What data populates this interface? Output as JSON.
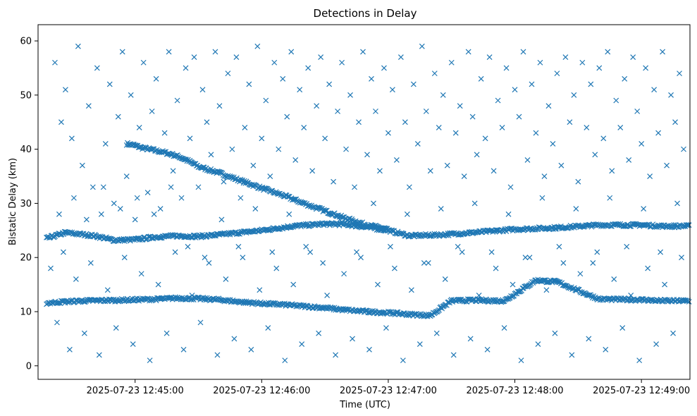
{
  "chart_data": {
    "type": "scatter",
    "title": "Detections in Delay",
    "xlabel": "Time (UTC)",
    "ylabel": "Bistatic Delay (km)",
    "marker": "x",
    "color": "#1f77b4",
    "xlim_seconds": [
      -46,
      263
    ],
    "ylim": [
      -2.5,
      63
    ],
    "x_reference": "2025-07-23 12:45:00",
    "x_ticks": [
      {
        "value": 0,
        "label": "2025-07-23 12:45:00"
      },
      {
        "value": 60,
        "label": "2025-07-23 12:46:00"
      },
      {
        "value": 120,
        "label": "2025-07-23 12:47:00"
      },
      {
        "value": 180,
        "label": "2025-07-23 12:48:00"
      },
      {
        "value": 240,
        "label": "2025-07-23 12:49:00"
      }
    ],
    "y_ticks": [
      0,
      10,
      20,
      30,
      40,
      50,
      60
    ],
    "tracks": [
      {
        "name": "upper",
        "points": [
          [
            -4,
            41.0
          ],
          [
            -1,
            40.8
          ],
          [
            3,
            40.3
          ],
          [
            8,
            39.9
          ],
          [
            15,
            39.3
          ],
          [
            21,
            38.6
          ],
          [
            26,
            37.7
          ],
          [
            30,
            36.8
          ],
          [
            40,
            35.6
          ],
          [
            50,
            34.2
          ],
          [
            60,
            32.8
          ],
          [
            70,
            31.5
          ],
          [
            80,
            30.0
          ],
          [
            90,
            28.6
          ],
          [
            100,
            27.2
          ],
          [
            110,
            26.0
          ],
          [
            120,
            25.2
          ]
        ]
      },
      {
        "name": "middle",
        "points": [
          [
            -42,
            23.5
          ],
          [
            -33,
            24.6
          ],
          [
            -19,
            24.0
          ],
          [
            -10,
            23.2
          ],
          [
            0,
            23.3
          ],
          [
            10,
            23.8
          ],
          [
            20,
            24.0
          ],
          [
            30,
            23.9
          ],
          [
            40,
            24.2
          ],
          [
            60,
            25.0
          ],
          [
            75,
            25.8
          ],
          [
            90,
            26.2
          ],
          [
            100,
            26.1
          ],
          [
            110,
            25.6
          ],
          [
            120,
            25.0
          ],
          [
            130,
            24.0
          ],
          [
            145,
            24.2
          ],
          [
            160,
            24.6
          ],
          [
            180,
            25.2
          ],
          [
            200,
            25.5
          ],
          [
            220,
            26.0
          ],
          [
            240,
            26.0
          ],
          [
            250,
            25.8
          ],
          [
            263,
            25.8
          ]
        ]
      },
      {
        "name": "lower",
        "points": [
          [
            -42,
            11.6
          ],
          [
            -35,
            11.8
          ],
          [
            -25,
            12.0
          ],
          [
            -10,
            12.1
          ],
          [
            0,
            12.2
          ],
          [
            10,
            12.3
          ],
          [
            20,
            12.5
          ],
          [
            30,
            12.4
          ],
          [
            40,
            12.2
          ],
          [
            50,
            11.8
          ],
          [
            60,
            11.5
          ],
          [
            70,
            11.3
          ],
          [
            80,
            11.0
          ],
          [
            90,
            10.7
          ],
          [
            100,
            10.3
          ],
          [
            110,
            10.0
          ],
          [
            120,
            9.8
          ],
          [
            130,
            9.5
          ],
          [
            140,
            9.3
          ],
          [
            150,
            12.0
          ],
          [
            160,
            12.1
          ],
          [
            175,
            12.0
          ],
          [
            190,
            15.8
          ],
          [
            200,
            15.5
          ],
          [
            220,
            12.3
          ],
          [
            240,
            12.2
          ],
          [
            250,
            12.0
          ],
          [
            263,
            12.0
          ]
        ]
      }
    ],
    "track_density_per_second": 2.2,
    "noise_points": [
      [
        -38,
        56
      ],
      [
        -35,
        45
      ],
      [
        -33,
        51
      ],
      [
        -30,
        42
      ],
      [
        -27,
        59
      ],
      [
        -25,
        37
      ],
      [
        -22,
        48
      ],
      [
        -20,
        33
      ],
      [
        -18,
        55
      ],
      [
        -16,
        28
      ],
      [
        -14,
        41
      ],
      [
        -12,
        52
      ],
      [
        -10,
        30
      ],
      [
        -8,
        46
      ],
      [
        -6,
        58
      ],
      [
        -4,
        35
      ],
      [
        -2,
        50
      ],
      [
        0,
        27
      ],
      [
        2,
        44
      ],
      [
        4,
        56
      ],
      [
        6,
        32
      ],
      [
        8,
        47
      ],
      [
        10,
        53
      ],
      [
        12,
        29
      ],
      [
        14,
        43
      ],
      [
        16,
        58
      ],
      [
        18,
        36
      ],
      [
        20,
        49
      ],
      [
        22,
        31
      ],
      [
        24,
        55
      ],
      [
        26,
        42
      ],
      [
        28,
        57
      ],
      [
        30,
        33
      ],
      [
        32,
        51
      ],
      [
        34,
        45
      ],
      [
        36,
        39
      ],
      [
        38,
        58
      ],
      [
        40,
        48
      ],
      [
        42,
        34
      ],
      [
        44,
        54
      ],
      [
        46,
        40
      ],
      [
        48,
        57
      ],
      [
        50,
        31
      ],
      [
        52,
        44
      ],
      [
        54,
        52
      ],
      [
        56,
        37
      ],
      [
        58,
        59
      ],
      [
        60,
        42
      ],
      [
        62,
        49
      ],
      [
        64,
        35
      ],
      [
        66,
        56
      ],
      [
        68,
        40
      ],
      [
        70,
        53
      ],
      [
        72,
        46
      ],
      [
        74,
        58
      ],
      [
        76,
        38
      ],
      [
        78,
        51
      ],
      [
        80,
        44
      ],
      [
        82,
        55
      ],
      [
        84,
        36
      ],
      [
        86,
        48
      ],
      [
        88,
        57
      ],
      [
        90,
        42
      ],
      [
        92,
        52
      ],
      [
        94,
        34
      ],
      [
        96,
        47
      ],
      [
        98,
        56
      ],
      [
        100,
        40
      ],
      [
        102,
        50
      ],
      [
        104,
        33
      ],
      [
        106,
        45
      ],
      [
        108,
        58
      ],
      [
        110,
        39
      ],
      [
        112,
        53
      ],
      [
        114,
        47
      ],
      [
        116,
        36
      ],
      [
        118,
        55
      ],
      [
        120,
        43
      ],
      [
        122,
        51
      ],
      [
        124,
        38
      ],
      [
        126,
        57
      ],
      [
        128,
        45
      ],
      [
        130,
        33
      ],
      [
        132,
        52
      ],
      [
        134,
        41
      ],
      [
        136,
        59
      ],
      [
        138,
        47
      ],
      [
        140,
        36
      ],
      [
        142,
        54
      ],
      [
        144,
        44
      ],
      [
        146,
        50
      ],
      [
        148,
        37
      ],
      [
        150,
        56
      ],
      [
        152,
        43
      ],
      [
        154,
        48
      ],
      [
        156,
        35
      ],
      [
        158,
        58
      ],
      [
        160,
        46
      ],
      [
        162,
        39
      ],
      [
        164,
        53
      ],
      [
        166,
        42
      ],
      [
        168,
        57
      ],
      [
        170,
        36
      ],
      [
        172,
        49
      ],
      [
        174,
        44
      ],
      [
        176,
        55
      ],
      [
        178,
        33
      ],
      [
        180,
        51
      ],
      [
        182,
        46
      ],
      [
        184,
        58
      ],
      [
        186,
        38
      ],
      [
        188,
        52
      ],
      [
        190,
        43
      ],
      [
        192,
        56
      ],
      [
        194,
        35
      ],
      [
        196,
        48
      ],
      [
        198,
        41
      ],
      [
        200,
        54
      ],
      [
        202,
        37
      ],
      [
        204,
        57
      ],
      [
        206,
        45
      ],
      [
        208,
        50
      ],
      [
        210,
        34
      ],
      [
        212,
        56
      ],
      [
        214,
        44
      ],
      [
        216,
        52
      ],
      [
        218,
        39
      ],
      [
        220,
        55
      ],
      [
        222,
        42
      ],
      [
        224,
        58
      ],
      [
        226,
        36
      ],
      [
        228,
        49
      ],
      [
        230,
        44
      ],
      [
        232,
        53
      ],
      [
        234,
        38
      ],
      [
        236,
        57
      ],
      [
        238,
        47
      ],
      [
        240,
        41
      ],
      [
        242,
        55
      ],
      [
        244,
        35
      ],
      [
        246,
        51
      ],
      [
        248,
        43
      ],
      [
        250,
        58
      ],
      [
        252,
        37
      ],
      [
        254,
        50
      ],
      [
        256,
        45
      ],
      [
        258,
        54
      ],
      [
        260,
        40
      ],
      [
        -40,
        18
      ],
      [
        -37,
        8
      ],
      [
        -34,
        21
      ],
      [
        -31,
        3
      ],
      [
        -28,
        16
      ],
      [
        -24,
        6
      ],
      [
        -21,
        19
      ],
      [
        -17,
        2
      ],
      [
        -13,
        14
      ],
      [
        -9,
        7
      ],
      [
        -5,
        20
      ],
      [
        -1,
        4
      ],
      [
        3,
        17
      ],
      [
        7,
        1
      ],
      [
        11,
        15
      ],
      [
        15,
        6
      ],
      [
        19,
        21
      ],
      [
        23,
        3
      ],
      [
        27,
        13
      ],
      [
        31,
        8
      ],
      [
        35,
        19
      ],
      [
        39,
        2
      ],
      [
        43,
        16
      ],
      [
        47,
        5
      ],
      [
        51,
        20
      ],
      [
        55,
        3
      ],
      [
        59,
        14
      ],
      [
        63,
        7
      ],
      [
        67,
        18
      ],
      [
        71,
        1
      ],
      [
        75,
        15
      ],
      [
        79,
        4
      ],
      [
        83,
        21
      ],
      [
        87,
        6
      ],
      [
        91,
        13
      ],
      [
        95,
        2
      ],
      [
        99,
        17
      ],
      [
        103,
        5
      ],
      [
        107,
        20
      ],
      [
        111,
        3
      ],
      [
        115,
        15
      ],
      [
        119,
        7
      ],
      [
        123,
        18
      ],
      [
        127,
        1
      ],
      [
        131,
        14
      ],
      [
        135,
        4
      ],
      [
        139,
        19
      ],
      [
        143,
        6
      ],
      [
        147,
        16
      ],
      [
        151,
        2
      ],
      [
        155,
        21
      ],
      [
        159,
        5
      ],
      [
        163,
        13
      ],
      [
        167,
        3
      ],
      [
        171,
        18
      ],
      [
        175,
        7
      ],
      [
        179,
        15
      ],
      [
        183,
        1
      ],
      [
        187,
        20
      ],
      [
        191,
        4
      ],
      [
        195,
        14
      ],
      [
        199,
        6
      ],
      [
        203,
        19
      ],
      [
        207,
        2
      ],
      [
        211,
        17
      ],
      [
        215,
        5
      ],
      [
        219,
        21
      ],
      [
        223,
        3
      ],
      [
        227,
        16
      ],
      [
        231,
        7
      ],
      [
        235,
        13
      ],
      [
        239,
        1
      ],
      [
        243,
        18
      ],
      [
        247,
        4
      ],
      [
        251,
        15
      ],
      [
        255,
        6
      ],
      [
        259,
        20
      ],
      [
        -36,
        28
      ],
      [
        -29,
        31
      ],
      [
        -23,
        27
      ],
      [
        -15,
        33
      ],
      [
        -7,
        29
      ],
      [
        1,
        31
      ],
      [
        9,
        28
      ],
      [
        17,
        33
      ],
      [
        25,
        22
      ],
      [
        33,
        20
      ],
      [
        41,
        27
      ],
      [
        49,
        22
      ],
      [
        57,
        29
      ],
      [
        65,
        21
      ],
      [
        73,
        28
      ],
      [
        81,
        22
      ],
      [
        89,
        19
      ],
      [
        97,
        27
      ],
      [
        105,
        21
      ],
      [
        113,
        30
      ],
      [
        121,
        22
      ],
      [
        129,
        28
      ],
      [
        137,
        19
      ],
      [
        145,
        29
      ],
      [
        153,
        22
      ],
      [
        161,
        30
      ],
      [
        169,
        21
      ],
      [
        177,
        28
      ],
      [
        185,
        20
      ],
      [
        193,
        31
      ],
      [
        201,
        22
      ],
      [
        209,
        29
      ],
      [
        217,
        19
      ],
      [
        225,
        31
      ],
      [
        233,
        22
      ],
      [
        241,
        29
      ],
      [
        249,
        21
      ],
      [
        257,
        30
      ]
    ]
  }
}
